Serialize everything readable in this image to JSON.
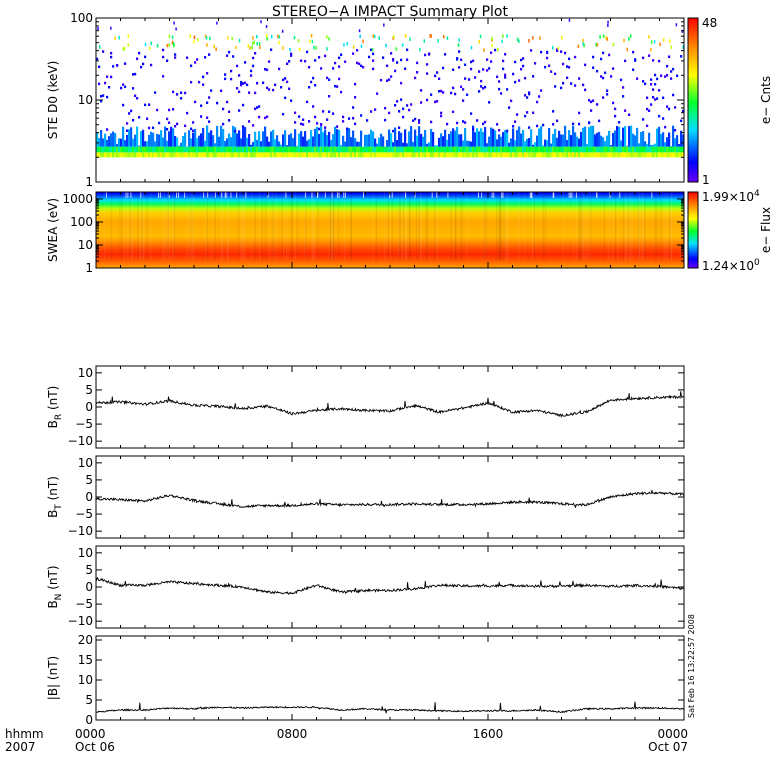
{
  "chart_data": {
    "type": "multi-panel",
    "title": "STEREO−A IMPACT Summary Plot",
    "x_axis": {
      "label_line1": "hhmm",
      "label_line2": "2007",
      "range_hours": [
        0,
        24
      ],
      "ticks": [
        {
          "hour": 0,
          "label": "0000",
          "sublabel": "Oct 06"
        },
        {
          "hour": 8,
          "label": "0800",
          "sublabel": ""
        },
        {
          "hour": 16,
          "label": "1600",
          "sublabel": ""
        },
        {
          "hour": 24,
          "label": "0000",
          "sublabel": "Oct 07"
        }
      ]
    },
    "side_note": "Sat Feb 16 13:22:57 2008",
    "panels": [
      {
        "id": "ste",
        "type": "heatmap",
        "ylabel": "STE D0 (keV)",
        "yscale": "log",
        "ylim": [
          1,
          100
        ],
        "yticks": [
          {
            "v": 1,
            "label": "1"
          },
          {
            "v": 10,
            "label": "10"
          },
          {
            "v": 100,
            "label": "100"
          }
        ],
        "colorbar": {
          "label": "e− Cnts",
          "max_label": "48",
          "min_label": "1",
          "range": [
            1,
            48
          ]
        },
        "energy_profile": [
          {
            "e": 2.0,
            "counts": 30
          },
          {
            "e": 2.3,
            "counts": 22
          },
          {
            "e": 2.7,
            "counts": 12
          },
          {
            "e": 3.5,
            "counts": 6
          },
          {
            "e": 5,
            "counts": 3
          },
          {
            "e": 10,
            "counts": 2
          },
          {
            "e": 30,
            "counts": 1
          },
          {
            "e": 55,
            "counts": 1
          }
        ]
      },
      {
        "id": "swea",
        "type": "heatmap",
        "ylabel": "SWEA (eV)",
        "yscale": "log",
        "ylim": [
          1,
          2000
        ],
        "yticks": [
          {
            "v": 1,
            "label": "1"
          },
          {
            "v": 10,
            "label": "10"
          },
          {
            "v": 100,
            "label": "100"
          },
          {
            "v": 1000,
            "label": "1000"
          }
        ],
        "colorbar": {
          "label": "e− Flux",
          "max_label": "1.99×10",
          "max_exp": "4",
          "min_label": "1.24×10",
          "min_exp": "0"
        },
        "energy_profile": [
          {
            "e": 1,
            "level": 0.78
          },
          {
            "e": 2,
            "level": 0.88
          },
          {
            "e": 4,
            "level": 0.95
          },
          {
            "e": 7,
            "level": 0.9
          },
          {
            "e": 15,
            "level": 0.8
          },
          {
            "e": 25,
            "level": 0.75
          },
          {
            "e": 100,
            "level": 0.78
          },
          {
            "e": 250,
            "level": 0.72
          },
          {
            "e": 400,
            "level": 0.6
          },
          {
            "e": 600,
            "level": 0.45
          },
          {
            "e": 900,
            "level": 0.32
          },
          {
            "e": 1300,
            "level": 0.2
          },
          {
            "e": 1800,
            "level": 0.12
          }
        ]
      },
      {
        "id": "br",
        "type": "line",
        "ylabel_main": "B",
        "ylabel_sub": "R",
        "ylabel_unit": " (nT)",
        "ylim": [
          -12,
          12
        ],
        "yticks": [
          {
            "v": 10,
            "label": "10"
          },
          {
            "v": 5,
            "label": "5"
          },
          {
            "v": 0,
            "label": "0"
          },
          {
            "v": -5,
            "label": "−5"
          },
          {
            "v": -10,
            "label": "−10"
          }
        ],
        "x": [
          0,
          1,
          2,
          3,
          4,
          5,
          6,
          7,
          8,
          9,
          10,
          11,
          12,
          13,
          14,
          15,
          16,
          17,
          18,
          19,
          20,
          21,
          22,
          23,
          24
        ],
        "y": [
          1.2,
          1.5,
          0.8,
          1.8,
          0.5,
          0.2,
          -0.5,
          0.3,
          -2.0,
          -1.0,
          -0.5,
          -1.0,
          -1.2,
          0.5,
          -1.5,
          -0.3,
          1.2,
          -1.5,
          -1.0,
          -2.5,
          -1.5,
          2.0,
          2.5,
          2.8,
          3.0
        ]
      },
      {
        "id": "bt",
        "type": "line",
        "ylabel_main": "B",
        "ylabel_sub": "T",
        "ylabel_unit": " (nT)",
        "ylim": [
          -12,
          12
        ],
        "yticks": [
          {
            "v": 10,
            "label": "10"
          },
          {
            "v": 5,
            "label": "5"
          },
          {
            "v": 0,
            "label": "0"
          },
          {
            "v": -5,
            "label": "−5"
          },
          {
            "v": -10,
            "label": "−10"
          }
        ],
        "x": [
          0,
          1,
          2,
          3,
          4,
          5,
          6,
          7,
          8,
          9,
          10,
          11,
          12,
          13,
          14,
          15,
          16,
          17,
          18,
          19,
          20,
          21,
          22,
          23,
          24
        ],
        "y": [
          -0.5,
          -0.8,
          -1.2,
          0.5,
          -1.0,
          -2.0,
          -2.8,
          -2.5,
          -2.5,
          -2.0,
          -2.3,
          -2.2,
          -2.2,
          -2.0,
          -2.2,
          -2.2,
          -2.0,
          -1.5,
          -1.5,
          -2.0,
          -2.3,
          0.0,
          1.0,
          1.2,
          0.8
        ]
      },
      {
        "id": "bn",
        "type": "line",
        "ylabel_main": "B",
        "ylabel_sub": "N",
        "ylabel_unit": " (nT)",
        "ylim": [
          -12,
          12
        ],
        "yticks": [
          {
            "v": 10,
            "label": "10"
          },
          {
            "v": 5,
            "label": "5"
          },
          {
            "v": 0,
            "label": "0"
          },
          {
            "v": -5,
            "label": "−5"
          },
          {
            "v": -10,
            "label": "−10"
          }
        ],
        "x": [
          0,
          1,
          2,
          3,
          4,
          5,
          6,
          7,
          8,
          9,
          10,
          11,
          12,
          13,
          14,
          15,
          16,
          17,
          18,
          19,
          20,
          21,
          22,
          23,
          24
        ],
        "y": [
          2.5,
          0.5,
          0.5,
          1.5,
          1.0,
          0.5,
          0.0,
          -1.5,
          -1.8,
          0.5,
          -1.5,
          -1.0,
          -1.0,
          -0.5,
          0.5,
          0.3,
          0.3,
          0.5,
          0.2,
          0.3,
          0.5,
          0.2,
          0.5,
          0.2,
          -0.5
        ]
      },
      {
        "id": "bmag",
        "type": "line",
        "ylabel_main": "|B| (nT)",
        "ylim": [
          0,
          21
        ],
        "yticks": [
          {
            "v": 20,
            "label": "20"
          },
          {
            "v": 15,
            "label": "15"
          },
          {
            "v": 10,
            "label": "10"
          },
          {
            "v": 5,
            "label": "5"
          },
          {
            "v": 0,
            "label": "0"
          }
        ],
        "x": [
          0,
          1,
          2,
          3,
          4,
          5,
          6,
          7,
          8,
          9,
          10,
          11,
          12,
          13,
          14,
          15,
          16,
          17,
          18,
          19,
          20,
          21,
          22,
          23,
          24
        ],
        "y": [
          2.0,
          2.5,
          2.5,
          3.0,
          2.8,
          3.2,
          3.0,
          3.2,
          3.2,
          3.2,
          2.5,
          2.8,
          2.5,
          2.5,
          2.3,
          2.2,
          2.3,
          2.3,
          2.5,
          2.0,
          2.8,
          2.8,
          3.0,
          3.0,
          2.8
        ]
      }
    ]
  }
}
